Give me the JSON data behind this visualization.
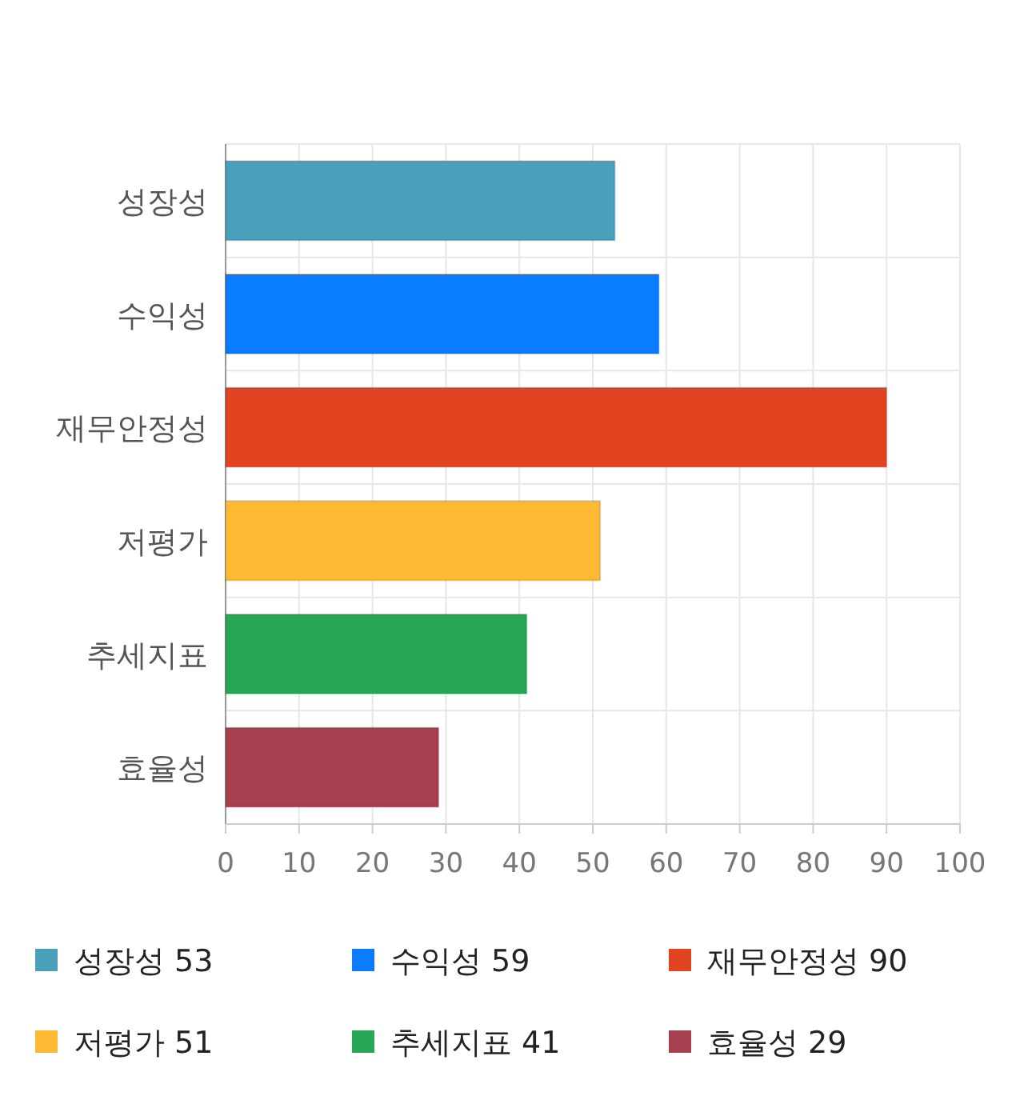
{
  "chart_data": {
    "type": "bar",
    "orientation": "horizontal",
    "stacked": true,
    "categories": [
      "성장성",
      "수익성",
      "재무안정성",
      "저평가",
      "추세지표",
      "효율성"
    ],
    "series": [
      {
        "name": "성장성 53",
        "color": "#4aa0ba",
        "values": [
          53,
          null,
          null,
          null,
          null,
          null
        ]
      },
      {
        "name": "수익성 59",
        "color": "#0a7cff",
        "values": [
          null,
          59,
          null,
          null,
          null,
          null
        ]
      },
      {
        "name": "재무안정성 90",
        "color": "#e24422",
        "values": [
          null,
          null,
          90,
          null,
          null,
          null
        ]
      },
      {
        "name": "저평가 51",
        "color": "#ffb932",
        "values": [
          null,
          null,
          null,
          51,
          null,
          null
        ]
      },
      {
        "name": "추세지표 41",
        "color": "#28a655",
        "values": [
          null,
          null,
          null,
          null,
          41,
          null
        ]
      },
      {
        "name": "효율성 29",
        "color": "#a63f4e",
        "values": [
          null,
          null,
          null,
          null,
          null,
          29
        ]
      }
    ],
    "xlim": [
      0,
      100
    ],
    "xticks": [
      0,
      10,
      20,
      30,
      40,
      50,
      60,
      70,
      80,
      90,
      100
    ],
    "grid": true,
    "legend": "bottom"
  }
}
